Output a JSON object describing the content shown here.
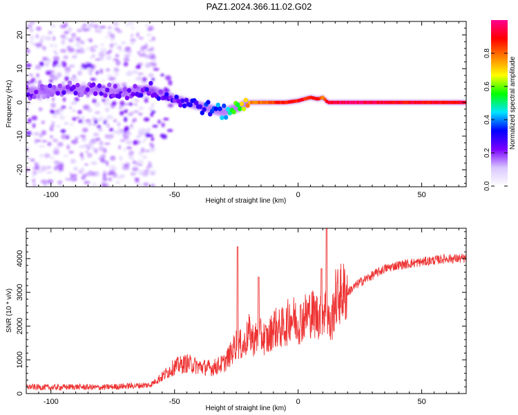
{
  "title": "PAZ1.2024.366.11.02.G02",
  "chart_data": [
    {
      "type": "heatmap",
      "xlabel": "Height of straight line (km)",
      "ylabel": "Frequency (Hz)",
      "xlim": [
        -110,
        68
      ],
      "ylim": [
        -25,
        24
      ],
      "xticks": [
        -100,
        -50,
        0,
        50
      ],
      "yticks": [
        -20,
        -10,
        0,
        10,
        20
      ],
      "colorbar": {
        "label": "Normalized spectral amplitude",
        "range": [
          0,
          1
        ],
        "ticks": [
          0.0,
          0.2,
          0.4,
          0.6,
          0.8
        ],
        "colors": [
          "#ffffff",
          "#d9c6ff",
          "#7a00ff",
          "#0000ff",
          "#00e5ff",
          "#00ff00",
          "#ffff00",
          "#ff8000",
          "#ff0000",
          "#ff0090"
        ]
      },
      "ridge": {
        "x": [
          -110,
          -100,
          -90,
          -80,
          -70,
          -60,
          -55,
          -50,
          -45,
          -40,
          -35,
          -30,
          -27,
          -24,
          -20,
          -15,
          -10,
          -5,
          0,
          5,
          8,
          10,
          12,
          15,
          20,
          30,
          40,
          50,
          60,
          68
        ],
        "frequency": [
          3,
          3.5,
          4,
          3.5,
          3,
          4,
          2.5,
          1,
          0,
          -1,
          -2,
          -3,
          -2,
          -1.5,
          0,
          0,
          0,
          0,
          0.5,
          1.5,
          1,
          1.5,
          0,
          0,
          0,
          0,
          0,
          0,
          0,
          0
        ],
        "amplitude": [
          0.2,
          0.2,
          0.2,
          0.2,
          0.2,
          0.25,
          0.25,
          0.25,
          0.25,
          0.3,
          0.35,
          0.4,
          0.5,
          0.6,
          0.75,
          0.8,
          0.85,
          0.85,
          0.9,
          0.85,
          0.9,
          0.8,
          0.9,
          0.95,
          0.95,
          0.95,
          0.9,
          0.9,
          0.9,
          0.9
        ]
      }
    },
    {
      "type": "line",
      "xlabel": "Height of straight line (km)",
      "ylabel": "SNR (10 * v/v)",
      "xlim": [
        -110,
        68
      ],
      "ylim": [
        0,
        4900
      ],
      "xticks": [
        -100,
        -50,
        0,
        50
      ],
      "yticks": [
        0,
        1000,
        2000,
        3000,
        4000
      ],
      "color": "#ee3333",
      "series": [
        {
          "x": [
            -110,
            -100,
            -90,
            -80,
            -70,
            -60,
            -55,
            -50,
            -45,
            -40,
            -35,
            -30,
            -27,
            -25,
            -22,
            -20,
            -18,
            -15,
            -12,
            -10,
            -8,
            -5,
            -3,
            0,
            3,
            5,
            8,
            10,
            12,
            13,
            15,
            18,
            20,
            25,
            30,
            35,
            40,
            45,
            50,
            55,
            60,
            65,
            68
          ],
          "values": [
            200,
            180,
            200,
            180,
            220,
            250,
            500,
            800,
            900,
            800,
            750,
            900,
            1200,
            1500,
            1400,
            1800,
            1600,
            1700,
            1600,
            2000,
            1900,
            2000,
            2300,
            2100,
            2300,
            2400,
            2300,
            2500,
            2400,
            1900,
            2800,
            3000,
            3000,
            3300,
            3500,
            3700,
            3800,
            3850,
            3900,
            3950,
            4000,
            4000,
            4000
          ]
        }
      ],
      "spikes": [
        {
          "x": -24.5,
          "value": 4350
        },
        {
          "x": -16,
          "value": 3450
        },
        {
          "x": 9.5,
          "value": 3700
        },
        {
          "x": 11.5,
          "value": 4900
        }
      ]
    }
  ]
}
